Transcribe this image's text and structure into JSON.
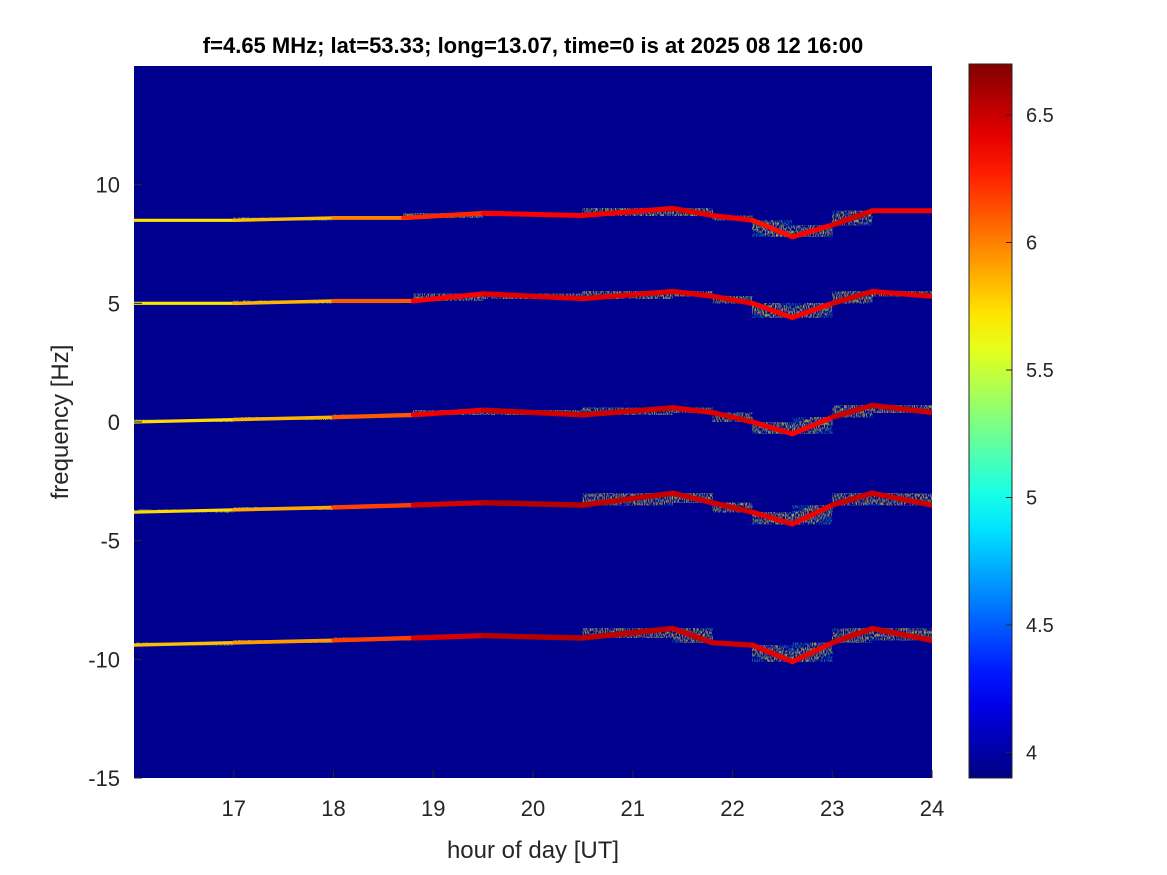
{
  "chart_data": {
    "type": "heatmap",
    "title": "f=4.65 MHz;  lat=53.33; long=13.07, time=0 is at 2025 08 12 16:00",
    "xlabel": "hour of day [UT]",
    "ylabel": "frequency [Hz]",
    "xlim": [
      16,
      24
    ],
    "ylim": [
      -15,
      15
    ],
    "x_ticks": [
      17,
      18,
      19,
      20,
      21,
      22,
      23,
      24
    ],
    "y_ticks": [
      -15,
      -10,
      -5,
      0,
      5,
      10
    ],
    "colormap": "jet",
    "colorbar": {
      "clim": [
        3.9,
        6.7
      ],
      "ticks": [
        4,
        4.5,
        5,
        5.5,
        6,
        6.5
      ]
    },
    "background_color": "#00008f",
    "traces": [
      {
        "name_hint": "",
        "points": [
          [
            16.0,
            8.5,
            0.35
          ],
          [
            17.0,
            8.5,
            0.45
          ],
          [
            18.0,
            8.6,
            0.5
          ],
          [
            18.7,
            8.6,
            0.7
          ],
          [
            19.5,
            8.8,
            0.85
          ],
          [
            20.5,
            8.7,
            0.85
          ],
          [
            21.4,
            9.0,
            0.9
          ],
          [
            21.8,
            8.7,
            0.9
          ],
          [
            22.2,
            8.5,
            0.85
          ],
          [
            22.6,
            7.8,
            0.8
          ],
          [
            23.0,
            8.3,
            0.9
          ],
          [
            23.4,
            8.9,
            0.95
          ],
          [
            24.0,
            8.9,
            0.8
          ]
        ]
      },
      {
        "name_hint": "",
        "points": [
          [
            16.0,
            5.0,
            0.35
          ],
          [
            17.0,
            5.0,
            0.45
          ],
          [
            18.0,
            5.1,
            0.55
          ],
          [
            18.8,
            5.1,
            0.8
          ],
          [
            19.5,
            5.4,
            0.9
          ],
          [
            20.5,
            5.2,
            0.9
          ],
          [
            21.4,
            5.5,
            0.9
          ],
          [
            21.8,
            5.3,
            0.9
          ],
          [
            22.2,
            5.0,
            0.9
          ],
          [
            22.6,
            4.4,
            0.8
          ],
          [
            23.0,
            5.0,
            0.9
          ],
          [
            23.4,
            5.5,
            0.95
          ],
          [
            24.0,
            5.3,
            0.85
          ]
        ]
      },
      {
        "name_hint": "",
        "points": [
          [
            16.0,
            0.0,
            0.4
          ],
          [
            17.0,
            0.1,
            0.45
          ],
          [
            18.0,
            0.2,
            0.55
          ],
          [
            18.8,
            0.3,
            0.8
          ],
          [
            19.5,
            0.5,
            0.95
          ],
          [
            20.5,
            0.3,
            0.95
          ],
          [
            21.4,
            0.6,
            0.95
          ],
          [
            21.8,
            0.4,
            0.9
          ],
          [
            22.2,
            0.0,
            0.95
          ],
          [
            22.6,
            -0.5,
            0.8
          ],
          [
            23.0,
            0.2,
            0.9
          ],
          [
            23.4,
            0.7,
            1.0
          ],
          [
            24.0,
            0.4,
            0.9
          ]
        ]
      },
      {
        "name_hint": "",
        "points": [
          [
            16.0,
            -3.8,
            0.4
          ],
          [
            17.0,
            -3.7,
            0.45
          ],
          [
            18.0,
            -3.6,
            0.6
          ],
          [
            18.8,
            -3.5,
            0.85
          ],
          [
            19.5,
            -3.4,
            1.0
          ],
          [
            20.5,
            -3.5,
            1.0
          ],
          [
            21.4,
            -3.0,
            0.95
          ],
          [
            21.8,
            -3.4,
            0.95
          ],
          [
            22.2,
            -3.8,
            0.95
          ],
          [
            22.6,
            -4.3,
            0.85
          ],
          [
            23.0,
            -3.5,
            0.9
          ],
          [
            23.4,
            -3.0,
            1.0
          ],
          [
            24.0,
            -3.5,
            0.9
          ]
        ]
      },
      {
        "name_hint": "",
        "points": [
          [
            16.0,
            -9.4,
            0.45
          ],
          [
            17.0,
            -9.3,
            0.5
          ],
          [
            18.0,
            -9.2,
            0.6
          ],
          [
            18.8,
            -9.1,
            0.85
          ],
          [
            19.5,
            -9.0,
            1.0
          ],
          [
            20.5,
            -9.1,
            1.0
          ],
          [
            21.4,
            -8.7,
            0.95
          ],
          [
            21.8,
            -9.3,
            0.95
          ],
          [
            22.2,
            -9.4,
            0.95
          ],
          [
            22.6,
            -10.1,
            0.85
          ],
          [
            23.0,
            -9.3,
            0.9
          ],
          [
            23.4,
            -8.7,
            1.0
          ],
          [
            24.0,
            -9.2,
            0.9
          ]
        ]
      }
    ]
  }
}
